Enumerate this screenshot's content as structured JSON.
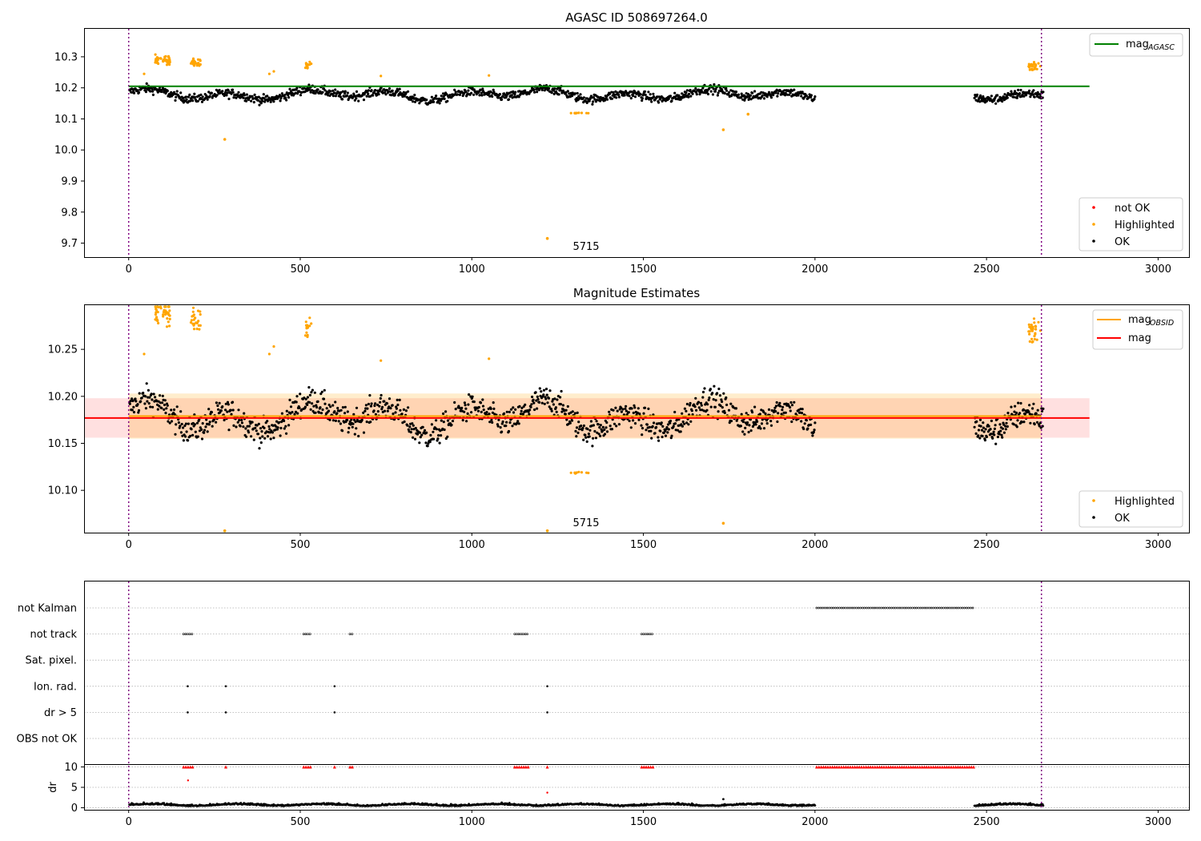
{
  "figure": {
    "titles": [
      "AGASC ID 508697264.0",
      "Magnitude Estimates"
    ],
    "x_axis": {
      "xlim": [
        -130,
        3090
      ],
      "ticks": [
        0,
        500,
        1000,
        1500,
        2000,
        2500,
        3000
      ]
    },
    "vlines": [
      0,
      2660
    ],
    "annotation": {
      "text": "5715",
      "x": 1330
    }
  },
  "chart_data": [
    {
      "type": "scatter",
      "title": "AGASC ID 508697264.0",
      "xlim": [
        -130,
        3090
      ],
      "ylim": [
        9.655,
        10.39
      ],
      "yticks": [
        "9.7",
        "9.8",
        "9.9",
        "10.0",
        "10.1",
        "10.2",
        "10.3"
      ],
      "hlines": [
        {
          "name": "mag_AGASC",
          "y": 10.205,
          "x_range": [
            0,
            2800
          ],
          "color": "#008000"
        }
      ],
      "legend_lines": [
        {
          "label": "mag",
          "sub": "AGASC",
          "color": "#008000"
        }
      ],
      "legend_points": [
        {
          "label": "not OK",
          "color": "#ff0000"
        },
        {
          "label": "Highlighted",
          "color": "#ffa500"
        },
        {
          "label": "OK",
          "color": "#000000"
        }
      ],
      "annotation": "5715",
      "outliers": [
        [
          280,
          10.034
        ],
        [
          1220,
          9.715
        ],
        [
          1733,
          10.065
        ],
        [
          1805,
          10.115
        ]
      ]
    },
    {
      "type": "scatter",
      "title": "Magnitude Estimates",
      "xlim": [
        -130,
        3090
      ],
      "ylim": [
        10.055,
        10.297
      ],
      "yticks": [
        "10.10",
        "10.15",
        "10.20",
        "10.25"
      ],
      "band_mag": {
        "y": 10.177,
        "low": 10.156,
        "high": 10.198,
        "x_range": [
          -130,
          2800
        ],
        "color": "#ff0000"
      },
      "band_obsid": {
        "y": 10.179,
        "low": 10.155,
        "high": 10.203,
        "x_range": [
          0,
          2660
        ],
        "color": "#ffa500"
      },
      "legend_lines": [
        {
          "label": "mag",
          "sub": "OBSID",
          "color": "#ffa500"
        },
        {
          "label": "mag",
          "sub": "",
          "color": "#ff0000"
        }
      ],
      "legend_points": [
        {
          "label": "Highlighted",
          "color": "#ffa500"
        },
        {
          "label": "OK",
          "color": "#000000"
        }
      ],
      "annotation": "5715",
      "outliers": [
        [
          280,
          10.057
        ],
        [
          1220,
          10.057
        ],
        [
          1733,
          10.065
        ]
      ]
    },
    {
      "type": "scatter",
      "title": "",
      "flag_rows": [
        "not Kalman",
        "not track",
        "Sat. pixel.",
        "Ion. rad.",
        "dr > 5",
        "OBS not OK"
      ],
      "flags": {
        "not Kalman": [
          [
            2005,
            2465
          ]
        ],
        "not track": [
          [
            160,
            190
          ],
          [
            510,
            530
          ],
          [
            645,
            655
          ],
          [
            1125,
            1165
          ],
          [
            1495,
            1530
          ]
        ],
        "Sat. pixel.": [],
        "Ion. rad.": [
          [
            172,
            172
          ],
          [
            283,
            283
          ],
          [
            600,
            600
          ],
          [
            1220,
            1220
          ]
        ],
        "dr > 5": [
          [
            172,
            172
          ],
          [
            283,
            283
          ],
          [
            600,
            600
          ],
          [
            1220,
            1220
          ]
        ],
        "OBS not OK": []
      },
      "dr_label": "dr",
      "dr_ylim": [
        -0.5,
        10.5
      ],
      "dr_yticks": [
        "0",
        "5",
        "10"
      ],
      "dr_clipped": [
        [
          160,
          190
        ],
        [
          283,
          283
        ],
        [
          510,
          530
        ],
        [
          600,
          600
        ],
        [
          645,
          655
        ],
        [
          1125,
          1165
        ],
        [
          1220,
          1220
        ],
        [
          1495,
          1530
        ],
        [
          2005,
          2465
        ]
      ],
      "dr_red_points": [
        [
          173,
          6.7
        ],
        [
          1220,
          3.7
        ]
      ],
      "dr_spike": [
        1733,
        2.1
      ]
    }
  ]
}
